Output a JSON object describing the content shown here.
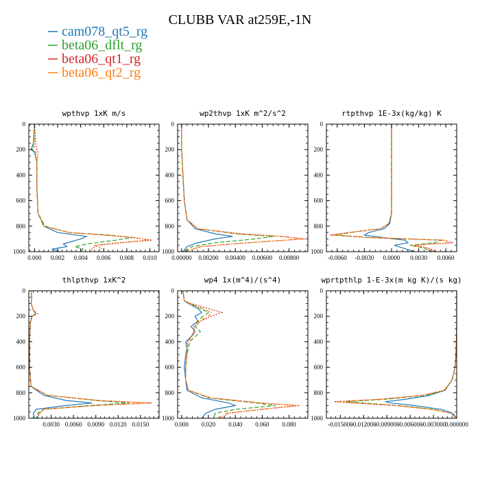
{
  "title": "CLUBB VAR at259E,-1N",
  "legend": [
    {
      "name": "cam078_qt5_rg",
      "color": "#1f77b4",
      "dash": ""
    },
    {
      "name": "beta06_dflt_rg",
      "color": "#2ca02c",
      "dash": "6,3"
    },
    {
      "name": "beta06_qt1_rg",
      "color": "#d62728",
      "dash": "2,2"
    },
    {
      "name": "beta06_qt2_rg",
      "color": "#ff7f0e",
      "dash": "5,2,1,2"
    }
  ],
  "chart_data": [
    {
      "type": "line",
      "title": "wpthvp   1xK m/s",
      "xlim": [
        -0.0005,
        0.0108
      ],
      "ylim": [
        0,
        1000
      ],
      "xticks": [
        0.0,
        0.002,
        0.004,
        0.006,
        0.008,
        0.01
      ],
      "xticklabels": [
        "0.000",
        "0.002",
        "0.004",
        "0.006",
        "0.008",
        "0.010"
      ],
      "yticks": [
        0,
        200,
        400,
        600,
        800,
        1000
      ],
      "series": [
        {
          "y": [
            0,
            150,
            200,
            220,
            300,
            500,
            700,
            800,
            850,
            880,
            900,
            940,
            960,
            980,
            1000
          ],
          "x": [
            0.0,
            -0.0001,
            -0.0003,
            0.0,
            0.0002,
            0.0002,
            0.0003,
            0.0008,
            0.002,
            0.0045,
            0.004,
            0.0025,
            0.0028,
            0.0015,
            0.0022
          ]
        },
        {
          "y": [
            0,
            150,
            200,
            220,
            300,
            500,
            700,
            800,
            850,
            870,
            890,
            910,
            940,
            960,
            980,
            1000
          ],
          "x": [
            0.0,
            -0.0001,
            -0.0002,
            0.0,
            0.0002,
            0.0002,
            0.0003,
            0.0009,
            0.003,
            0.0065,
            0.0085,
            0.007,
            0.0045,
            0.0035,
            0.0042,
            0.004
          ]
        },
        {
          "y": [
            0,
            150,
            200,
            220,
            300,
            500,
            700,
            800,
            850,
            870,
            890,
            910,
            930,
            950,
            975,
            1000
          ],
          "x": [
            0.0,
            0.0001,
            0.0002,
            0.0003,
            0.0002,
            0.0002,
            0.0003,
            0.0008,
            0.003,
            0.006,
            0.0085,
            0.0102,
            0.0075,
            0.0055,
            0.005,
            0.0048
          ]
        },
        {
          "y": [
            0,
            150,
            200,
            220,
            300,
            500,
            700,
            800,
            850,
            870,
            890,
            910,
            930,
            950,
            975,
            1000
          ],
          "x": [
            0.0,
            0.0,
            -0.0001,
            0.0001,
            0.0002,
            0.0002,
            0.0003,
            0.0008,
            0.003,
            0.0062,
            0.0088,
            0.0098,
            0.0072,
            0.0052,
            0.0058,
            0.0055
          ]
        }
      ]
    },
    {
      "type": "line",
      "title": "wp2thvp   1xK m^2/s^2",
      "xlim": [
        -0.0003,
        0.0094
      ],
      "ylim": [
        0,
        1000
      ],
      "xticks": [
        0.0,
        0.002,
        0.004,
        0.006,
        0.008
      ],
      "xticklabels": [
        "0.00000",
        "0.00200",
        "0.00400",
        "0.00600",
        "0.00800"
      ],
      "yticks": [
        0,
        200,
        400,
        600,
        800,
        1000
      ],
      "series": [
        {
          "y": [
            0,
            200,
            400,
            600,
            750,
            820,
            860,
            880,
            900,
            930,
            960,
            1000
          ],
          "x": [
            0.0,
            0.0,
            0.0001,
            0.0002,
            0.0004,
            0.001,
            0.0025,
            0.0038,
            0.0025,
            0.0012,
            0.0004,
            0.0001
          ]
        },
        {
          "y": [
            0,
            200,
            400,
            600,
            750,
            820,
            860,
            880,
            900,
            930,
            960,
            1000
          ],
          "x": [
            0.0,
            0.0,
            0.0001,
            0.0002,
            0.0004,
            0.0012,
            0.004,
            0.0068,
            0.0055,
            0.0025,
            0.0008,
            0.0001
          ]
        },
        {
          "y": [
            0,
            200,
            400,
            600,
            750,
            820,
            860,
            880,
            900,
            930,
            960,
            1000
          ],
          "x": [
            0.0,
            0.0,
            0.0001,
            0.0002,
            0.0004,
            0.0012,
            0.0045,
            0.0075,
            0.0092,
            0.005,
            0.0015,
            0.0002
          ]
        },
        {
          "y": [
            0,
            200,
            400,
            600,
            750,
            820,
            860,
            880,
            900,
            930,
            960,
            1000
          ],
          "x": [
            0.0,
            0.0,
            0.0001,
            0.0002,
            0.0004,
            0.0012,
            0.0042,
            0.0072,
            0.009,
            0.0048,
            0.0014,
            0.0002
          ]
        }
      ]
    },
    {
      "type": "line",
      "title": "rtpthvp   1E-3x(kg/kg) K",
      "xlim": [
        -0.0072,
        0.0072
      ],
      "ylim": [
        0,
        1000
      ],
      "xticks": [
        -0.006,
        -0.003,
        0.0,
        0.003,
        0.006
      ],
      "xticklabels": [
        "-0.0060",
        "-0.0030",
        "0.0000",
        "0.0030",
        "0.0060"
      ],
      "yticks": [
        0,
        200,
        400,
        600,
        800,
        1000
      ],
      "series": [
        {
          "y": [
            0,
            600,
            700,
            780,
            820,
            850,
            870,
            890,
            910,
            930,
            950,
            970,
            1000
          ],
          "x": [
            0.0,
            0.0,
            0.0,
            -0.0002,
            -0.0008,
            -0.0025,
            -0.003,
            -0.001,
            0.0015,
            0.0018,
            0.0003,
            0.0012,
            0.0025
          ]
        },
        {
          "y": [
            0,
            600,
            700,
            780,
            820,
            850,
            870,
            890,
            910,
            930,
            950,
            970,
            1000
          ],
          "x": [
            0.0,
            0.0,
            0.0,
            -0.0003,
            -0.0012,
            -0.0045,
            -0.0062,
            -0.002,
            0.0055,
            0.0048,
            0.002,
            0.0035,
            0.0045
          ]
        },
        {
          "y": [
            0,
            600,
            700,
            780,
            820,
            850,
            870,
            890,
            910,
            930,
            950,
            970,
            1000
          ],
          "x": [
            0.0,
            0.0,
            0.0,
            -0.0003,
            -0.0012,
            -0.0048,
            -0.0068,
            -0.0025,
            0.0058,
            0.0068,
            0.0025,
            0.004,
            0.005
          ]
        },
        {
          "y": [
            0,
            600,
            700,
            780,
            820,
            850,
            870,
            890,
            910,
            930,
            950,
            970,
            1000
          ],
          "x": [
            0.0,
            0.0,
            0.0,
            -0.0003,
            -0.0012,
            -0.0046,
            -0.0065,
            -0.0022,
            0.006,
            0.0062,
            0.0022,
            0.0038,
            0.0048
          ]
        }
      ]
    },
    {
      "type": "line",
      "title": "thlpthvp   1xK^2",
      "xlim": [
        0.0,
        0.0175
      ],
      "ylim": [
        0,
        1000
      ],
      "xticks": [
        0.003,
        0.006,
        0.009,
        0.012,
        0.015
      ],
      "xticklabels": [
        "0.0030",
        "0.0060",
        "0.0090",
        "0.0120",
        "0.0150"
      ],
      "yticks": [
        0,
        200,
        400,
        600,
        800,
        1000
      ],
      "series": [
        {
          "y": [
            0,
            50,
            100,
            150,
            180,
            200,
            250,
            400,
            600,
            750,
            820,
            860,
            880,
            900,
            930,
            960,
            1000
          ],
          "x": [
            0.0003,
            0.0004,
            0.0003,
            0.0006,
            0.0009,
            0.0004,
            0.0002,
            0.0001,
            0.0001,
            0.0003,
            0.002,
            0.005,
            0.0085,
            0.005,
            0.001,
            0.0006,
            0.0008
          ]
        },
        {
          "y": [
            0,
            50,
            100,
            150,
            180,
            200,
            250,
            400,
            600,
            750,
            820,
            860,
            880,
            900,
            930,
            960,
            1000
          ],
          "x": [
            0.0003,
            0.0004,
            0.0003,
            0.0006,
            0.0009,
            0.0004,
            0.0002,
            0.0001,
            0.0001,
            0.0003,
            0.0025,
            0.009,
            0.0135,
            0.008,
            0.002,
            0.0012,
            0.001
          ]
        },
        {
          "y": [
            0,
            50,
            100,
            150,
            180,
            200,
            250,
            400,
            600,
            750,
            820,
            860,
            880,
            900,
            930,
            960,
            1000
          ],
          "x": [
            0.0003,
            0.0004,
            0.0003,
            0.0006,
            0.0012,
            0.0005,
            0.0002,
            0.0001,
            0.0001,
            0.0003,
            0.0025,
            0.0095,
            0.0165,
            0.009,
            0.002,
            0.0015,
            0.0011
          ]
        },
        {
          "y": [
            0,
            50,
            100,
            150,
            180,
            200,
            250,
            400,
            600,
            750,
            820,
            860,
            880,
            900,
            930,
            960,
            1000
          ],
          "x": [
            0.0003,
            0.0004,
            0.0003,
            0.0006,
            0.001,
            0.0004,
            0.0002,
            0.0001,
            0.0001,
            0.0003,
            0.0025,
            0.0092,
            0.016,
            0.0088,
            0.002,
            0.0014,
            0.0011
          ]
        }
      ]
    },
    {
      "type": "line",
      "title": "wp4   1x(m^4)/(s^4)",
      "xlim": [
        -0.003,
        0.094
      ],
      "ylim": [
        0,
        1000
      ],
      "xticks": [
        0.0,
        0.02,
        0.04,
        0.06,
        0.08
      ],
      "xticklabels": [
        "0.000",
        "0.020",
        "0.040",
        "0.060",
        "0.080"
      ],
      "yticks": [
        0,
        200,
        400,
        600,
        800,
        1000
      ],
      "series": [
        {
          "y": [
            0,
            80,
            100,
            140,
            170,
            200,
            240,
            280,
            320,
            360,
            400,
            450,
            500,
            600,
            700,
            780,
            840,
            880,
            900,
            930,
            960,
            1000
          ],
          "x": [
            0.001,
            0.002,
            0.005,
            0.012,
            0.015,
            0.01,
            0.012,
            0.007,
            0.01,
            0.007,
            0.003,
            0.004,
            0.003,
            0.002,
            0.003,
            0.004,
            0.015,
            0.035,
            0.04,
            0.025,
            0.018,
            0.015
          ]
        },
        {
          "y": [
            0,
            80,
            100,
            140,
            170,
            200,
            240,
            280,
            320,
            360,
            400,
            450,
            500,
            600,
            700,
            780,
            840,
            880,
            900,
            930,
            960,
            1000
          ],
          "x": [
            0.001,
            0.002,
            0.006,
            0.014,
            0.02,
            0.016,
            0.012,
            0.01,
            0.014,
            0.01,
            0.006,
            0.005,
            0.004,
            0.003,
            0.003,
            0.005,
            0.02,
            0.055,
            0.07,
            0.04,
            0.025,
            0.024
          ]
        },
        {
          "y": [
            0,
            80,
            100,
            140,
            170,
            200,
            240,
            280,
            320,
            360,
            400,
            450,
            500,
            600,
            700,
            780,
            840,
            880,
            900,
            930,
            960,
            1000
          ],
          "x": [
            0.001,
            0.002,
            0.007,
            0.02,
            0.03,
            0.022,
            0.014,
            0.01,
            0.009,
            0.007,
            0.004,
            0.004,
            0.004,
            0.003,
            0.003,
            0.005,
            0.022,
            0.06,
            0.088,
            0.06,
            0.035,
            0.03
          ]
        },
        {
          "y": [
            0,
            80,
            100,
            140,
            170,
            200,
            240,
            280,
            320,
            360,
            400,
            450,
            500,
            600,
            700,
            780,
            840,
            880,
            900,
            930,
            960,
            1000
          ],
          "x": [
            0.001,
            0.002,
            0.006,
            0.016,
            0.022,
            0.02,
            0.013,
            0.009,
            0.01,
            0.008,
            0.005,
            0.004,
            0.004,
            0.003,
            0.003,
            0.005,
            0.021,
            0.058,
            0.086,
            0.058,
            0.033,
            0.028
          ]
        }
      ]
    },
    {
      "type": "line",
      "title": "wprtpthlp   1-E-3x(m kg K)/(s kg)",
      "xlim": [
        -0.0168,
        0.0
      ],
      "ylim": [
        0,
        1000
      ],
      "xticks": [
        -0.015,
        -0.012,
        -0.009,
        -0.006,
        -0.003,
        0.0
      ],
      "xticklabels": [
        "-0.015000",
        "-0.012000",
        "-0.009000",
        "-0.006000",
        "-0.003000",
        "0.000000"
      ],
      "yticks": [
        0,
        200,
        400,
        600,
        800,
        1000
      ],
      "series": [
        {
          "y": [
            0,
            300,
            500,
            600,
            700,
            780,
            820,
            850,
            870,
            880,
            900,
            930,
            960,
            1000
          ],
          "x": [
            0.0,
            0.0,
            -0.0001,
            -0.0002,
            -0.0006,
            -0.0015,
            -0.0035,
            -0.0065,
            -0.0092,
            -0.0085,
            -0.0055,
            -0.002,
            -0.0005,
            0.0
          ]
        },
        {
          "y": [
            0,
            300,
            500,
            600,
            700,
            780,
            820,
            850,
            870,
            880,
            900,
            930,
            960,
            1000
          ],
          "x": [
            0.0,
            0.0,
            -0.0001,
            -0.0002,
            -0.0006,
            -0.0015,
            -0.004,
            -0.009,
            -0.0142,
            -0.012,
            -0.0075,
            -0.003,
            -0.0008,
            0.0
          ]
        },
        {
          "y": [
            0,
            300,
            500,
            600,
            700,
            780,
            820,
            850,
            870,
            880,
            900,
            930,
            960,
            1000
          ],
          "x": [
            0.0,
            0.0,
            -0.0001,
            -0.0002,
            -0.0006,
            -0.0016,
            -0.0045,
            -0.0098,
            -0.0158,
            -0.0135,
            -0.008,
            -0.0032,
            -0.0008,
            0.0
          ]
        },
        {
          "y": [
            0,
            300,
            500,
            600,
            700,
            780,
            820,
            850,
            870,
            880,
            900,
            930,
            960,
            1000
          ],
          "x": [
            0.0,
            0.0,
            -0.0001,
            -0.0002,
            -0.0006,
            -0.0016,
            -0.0044,
            -0.0095,
            -0.0155,
            -0.013,
            -0.0078,
            -0.0031,
            -0.0008,
            0.0
          ]
        }
      ]
    }
  ]
}
